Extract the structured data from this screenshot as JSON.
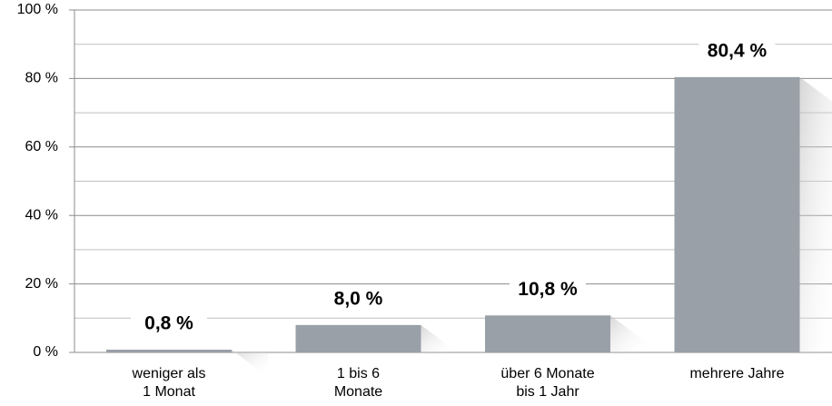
{
  "chart_data": {
    "type": "bar",
    "categories": [
      [
        "weniger als",
        "1 Monat"
      ],
      [
        "1 bis 6",
        "Monate"
      ],
      [
        "über 6 Monate",
        "bis 1 Jahr"
      ],
      [
        "mehrere Jahre"
      ]
    ],
    "values": [
      0.8,
      8.0,
      10.8,
      80.4
    ],
    "value_labels": [
      "0,8 %",
      "8,0 %",
      "10,8 %",
      "80,4 %"
    ],
    "color": "#9aa0a8",
    "ylim": [
      0,
      100
    ],
    "yticks": [
      {
        "value": 0,
        "label": "0 %"
      },
      {
        "value": 20,
        "label": "20 %"
      },
      {
        "value": 40,
        "label": "40 %"
      },
      {
        "value": 60,
        "label": "60 %"
      },
      {
        "value": 80,
        "label": "80 %"
      },
      {
        "value": 100,
        "label": "100 %"
      }
    ],
    "minor_yticks": [
      10,
      30,
      50,
      70,
      90
    ],
    "grid": true
  }
}
